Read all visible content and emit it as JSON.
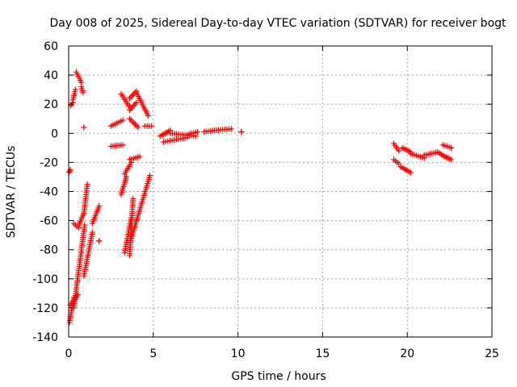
{
  "chart_data": {
    "type": "scatter",
    "title": "Day 008 of 2025, Sidereal Day-to-day VTEC variation (SDTVAR) for receiver bogt",
    "xlabel": "GPS time / hours",
    "ylabel": "SDTVAR / TECUs",
    "xlim": [
      0,
      25
    ],
    "ylim": [
      -140,
      60
    ],
    "xticks": [
      "0",
      "5",
      "10",
      "15",
      "20",
      "25"
    ],
    "yticks": [
      "-140",
      "-120",
      "-100",
      "-80",
      "-60",
      "-40",
      "-20",
      "0",
      "20",
      "40",
      "60"
    ],
    "grid": true,
    "marker": "+",
    "color": "#ff0000",
    "series": [
      {
        "name": "SDTVAR",
        "segments": [
          {
            "x": [
              0.02,
              0.1
            ],
            "y": [
              -27,
              -25
            ]
          },
          {
            "x": [
              0.12,
              0.25
            ],
            "y": [
              19,
              21
            ]
          },
          {
            "x": [
              0.25,
              0.4
            ],
            "y": [
              23,
              30
            ]
          },
          {
            "x": [
              0.45,
              0.75
            ],
            "y": [
              42,
              35
            ]
          },
          {
            "x": [
              0.75,
              0.85
            ],
            "y": [
              32,
              28
            ]
          },
          {
            "x": [
              0.9,
              0.9
            ],
            "y": [
              4,
              4
            ]
          },
          {
            "x": [
              0.05,
              0.3
            ],
            "y": [
              -130,
              -113
            ]
          },
          {
            "x": [
              0.1,
              0.55
            ],
            "y": [
              -118,
              -111
            ]
          },
          {
            "x": [
              0.3,
              0.95
            ],
            "y": [
              -120,
              -63
            ]
          },
          {
            "x": [
              0.3,
              0.6
            ],
            "y": [
              -62,
              -65
            ]
          },
          {
            "x": [
              0.6,
              0.9
            ],
            "y": [
              -63,
              -55
            ]
          },
          {
            "x": [
              0.9,
              1.1
            ],
            "y": [
              -55,
              -35
            ]
          },
          {
            "x": [
              0.9,
              1.4
            ],
            "y": [
              -98,
              -68
            ]
          },
          {
            "x": [
              1.4,
              1.8
            ],
            "y": [
              -62,
              -50
            ]
          },
          {
            "x": [
              1.8,
              1.8
            ],
            "y": [
              -74,
              -74
            ]
          },
          {
            "x": [
              2.5,
              3.2
            ],
            "y": [
              -9,
              -8
            ]
          },
          {
            "x": [
              2.5,
              3.2
            ],
            "y": [
              5,
              9
            ]
          },
          {
            "x": [
              3.1,
              3.6
            ],
            "y": [
              27,
              18
            ]
          },
          {
            "x": [
              3.6,
              4.0
            ],
            "y": [
              16,
              21
            ]
          },
          {
            "x": [
              3.6,
              4.0
            ],
            "y": [
              24,
              29
            ]
          },
          {
            "x": [
              4.0,
              4.7
            ],
            "y": [
              28,
              12
            ]
          },
          {
            "x": [
              3.6,
              4.1
            ],
            "y": [
              10,
              4
            ]
          },
          {
            "x": [
              4.5,
              4.9
            ],
            "y": [
              5,
              5
            ]
          },
          {
            "x": [
              3.1,
              3.4
            ],
            "y": [
              -42,
              -30
            ]
          },
          {
            "x": [
              3.3,
              3.7
            ],
            "y": [
              -28,
              -20
            ]
          },
          {
            "x": [
              3.6,
              4.2
            ],
            "y": [
              -18,
              -16
            ]
          },
          {
            "x": [
              3.3,
              3.7
            ],
            "y": [
              -82,
              -58
            ]
          },
          {
            "x": [
              3.6,
              3.8
            ],
            "y": [
              -84,
              -45
            ]
          },
          {
            "x": [
              3.7,
              4.8
            ],
            "y": [
              -72,
              -29
            ]
          },
          {
            "x": [
              5.4,
              6.0
            ],
            "y": [
              -2,
              2
            ]
          },
          {
            "x": [
              5.6,
              7.0
            ],
            "y": [
              -6,
              -3
            ]
          },
          {
            "x": [
              6.0,
              7.5
            ],
            "y": [
              0,
              -2
            ]
          },
          {
            "x": [
              7.0,
              7.6
            ],
            "y": [
              -1,
              1
            ]
          },
          {
            "x": [
              8.0,
              8.6
            ],
            "y": [
              1,
              2
            ]
          },
          {
            "x": [
              8.6,
              9.6
            ],
            "y": [
              2,
              3
            ]
          },
          {
            "x": [
              10.2,
              10.2
            ],
            "y": [
              1,
              1
            ]
          },
          {
            "x": [
              19.2,
              19.5
            ],
            "y": [
              -7,
              -12
            ]
          },
          {
            "x": [
              19.2,
              19.5
            ],
            "y": [
              -18,
              -21
            ]
          },
          {
            "x": [
              19.6,
              20.2
            ],
            "y": [
              -23,
              -27
            ]
          },
          {
            "x": [
              19.7,
              20.2
            ],
            "y": [
              -10,
              -13
            ]
          },
          {
            "x": [
              20.2,
              21.0
            ],
            "y": [
              -14,
              -17
            ]
          },
          {
            "x": [
              21.0,
              21.8
            ],
            "y": [
              -15,
              -13
            ]
          },
          {
            "x": [
              21.8,
              22.2
            ],
            "y": [
              -13,
              -16
            ]
          },
          {
            "x": [
              22.1,
              22.6
            ],
            "y": [
              -8,
              -10
            ]
          },
          {
            "x": [
              22.2,
              22.6
            ],
            "y": [
              -16,
              -18
            ]
          }
        ]
      }
    ]
  }
}
